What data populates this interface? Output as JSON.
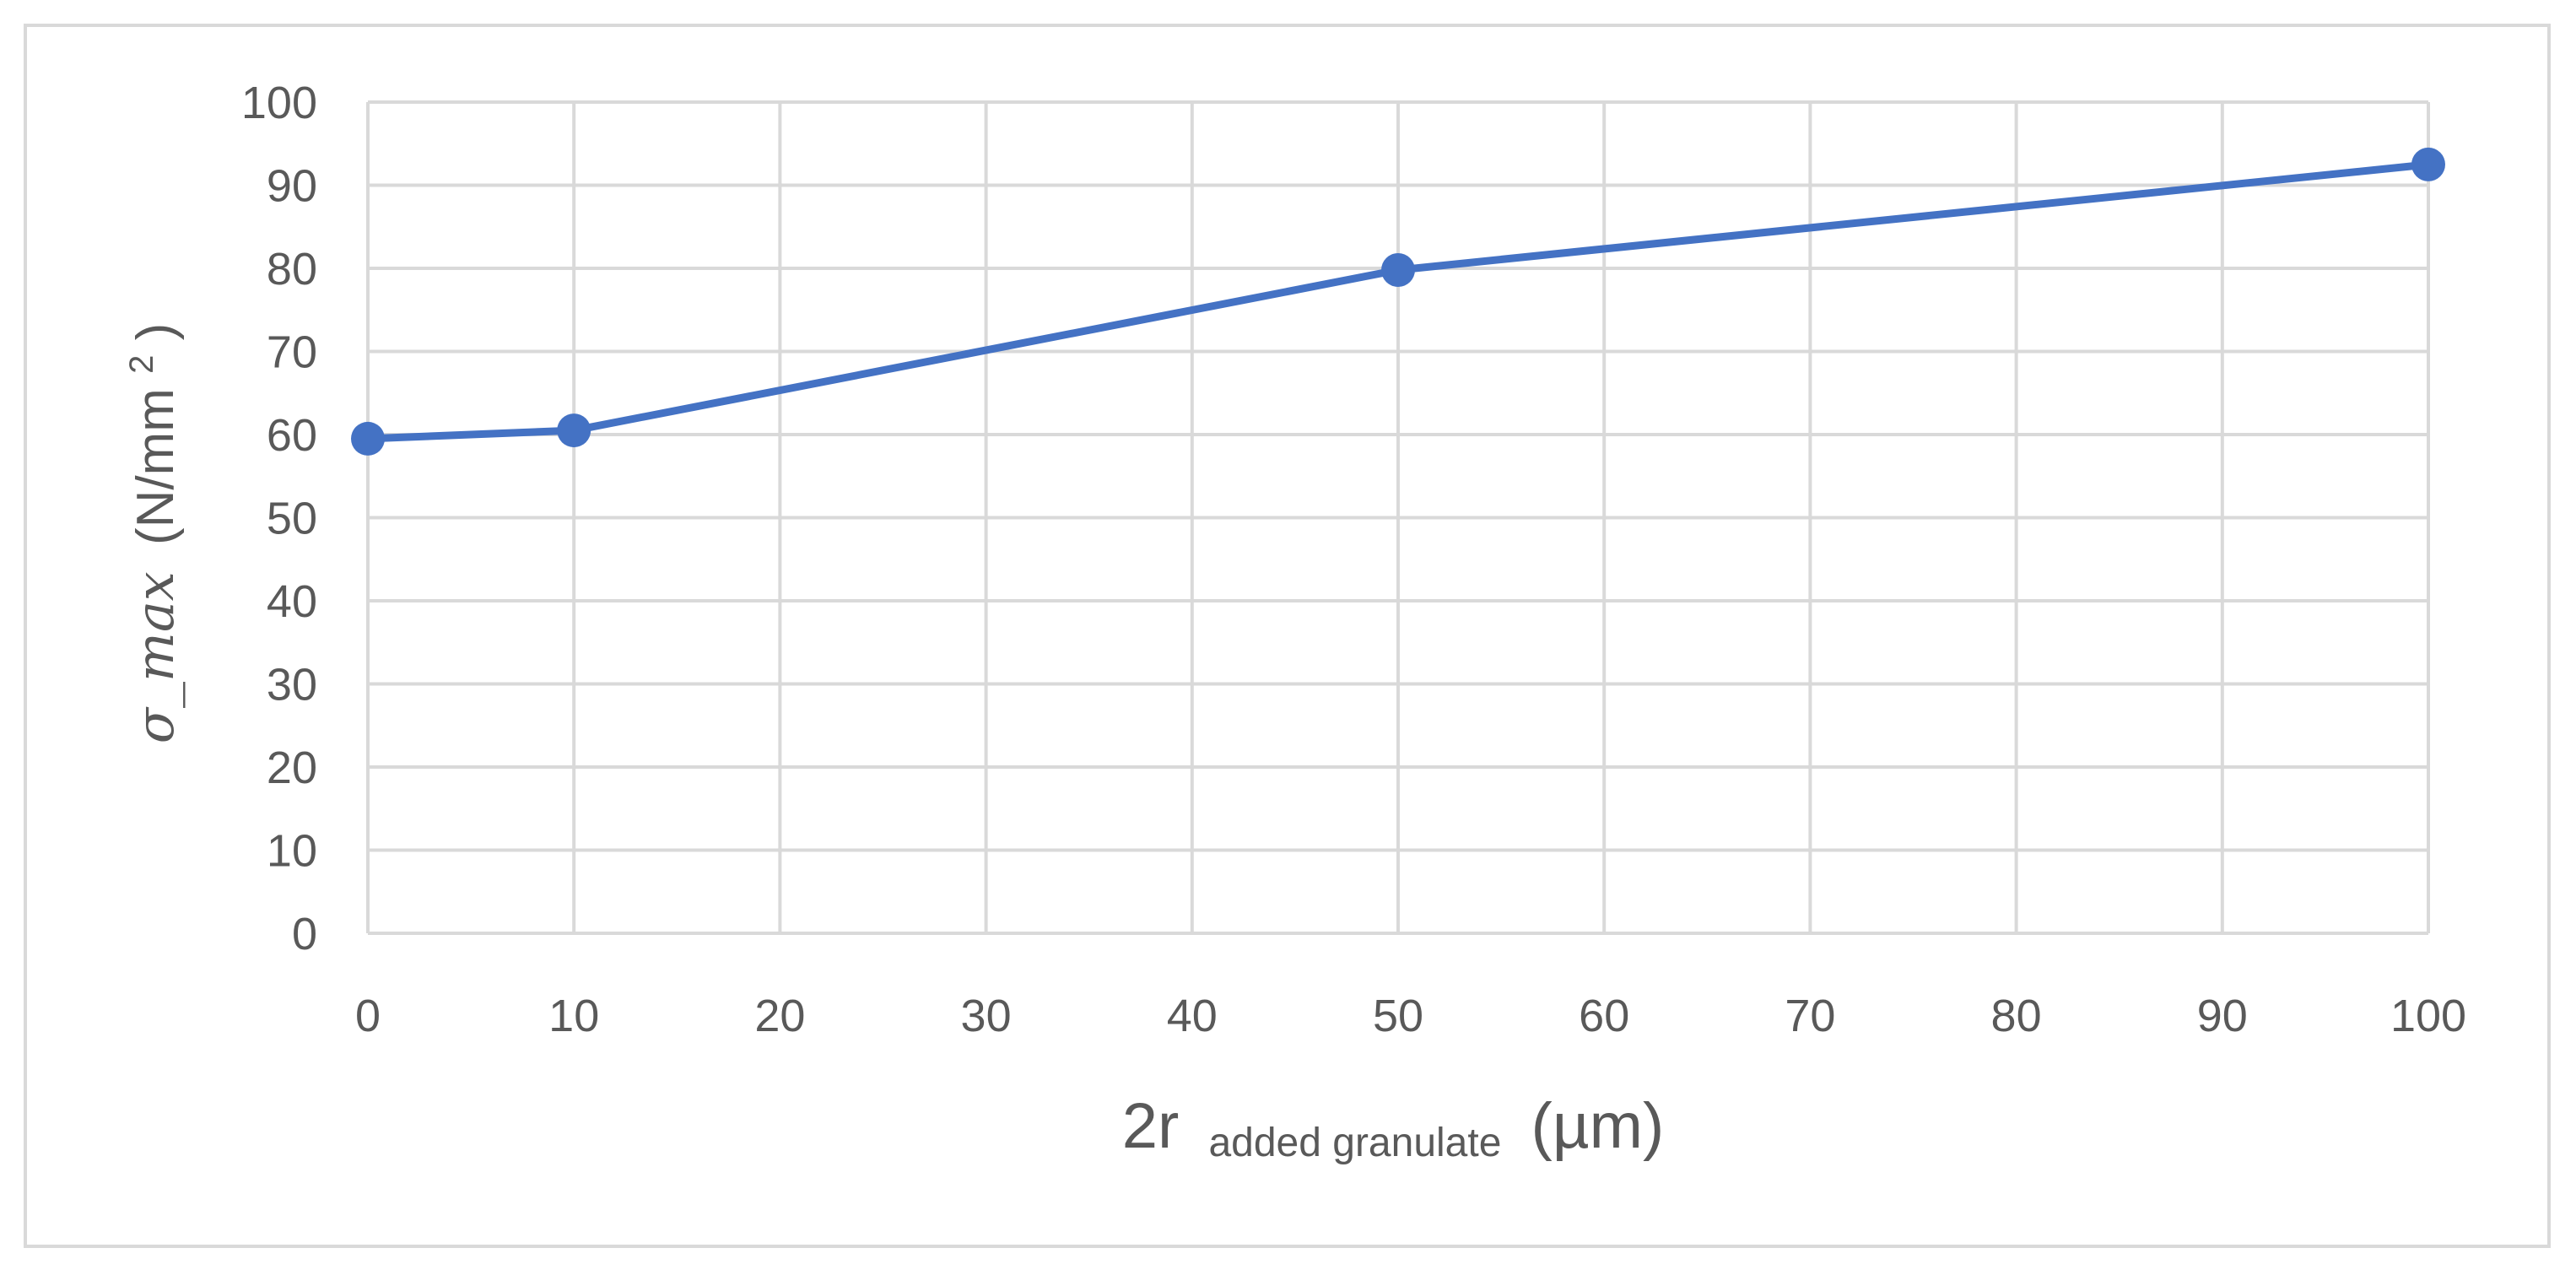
{
  "chart_data": {
    "type": "line",
    "x": [
      0,
      10,
      50,
      100
    ],
    "series": [
      {
        "values": [
          59.5,
          60.5,
          79.8,
          92.5
        ],
        "color": "#4472c4"
      }
    ],
    "x_ticks": [
      "0",
      "10",
      "20",
      "30",
      "40",
      "50",
      "60",
      "70",
      "80",
      "90",
      "100"
    ],
    "y_ticks": [
      "0",
      "10",
      "20",
      "30",
      "40",
      "50",
      "60",
      "70",
      "80",
      "90",
      "100"
    ],
    "xlim": [
      0,
      100
    ],
    "ylim": [
      0,
      100
    ],
    "grid": true,
    "xlabel": {
      "main": "2r",
      "subscript": "added granulate",
      "unit": "(µm)"
    },
    "ylabel": {
      "symbol": "σ_max",
      "unit_prefix": "(N/mm",
      "unit_sup": "2",
      "unit_suffix": ")"
    }
  }
}
